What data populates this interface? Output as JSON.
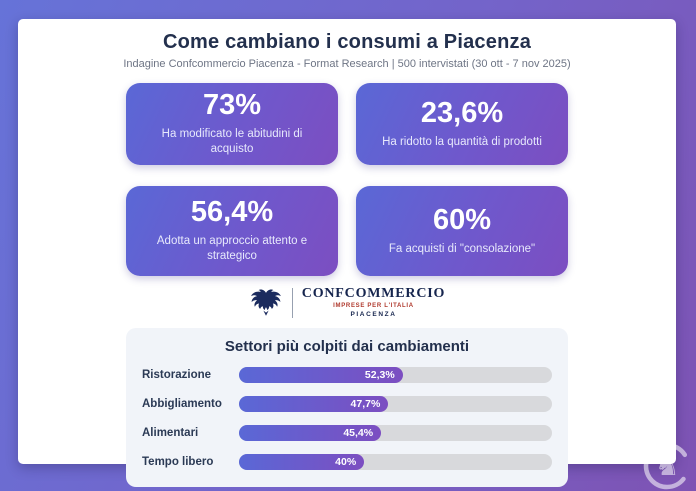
{
  "header": {
    "title": "Come cambiano i consumi a Piacenza",
    "subtitle": "Indagine Confcommercio Piacenza - Format Research | 500 intervistati (30 ott - 7 nov 2025)"
  },
  "stats": [
    {
      "value": "73%",
      "label": "Ha modificato le abitudini di acquisto"
    },
    {
      "value": "23,6%",
      "label": "Ha ridotto la quantità di prodotti"
    },
    {
      "value": "56,4%",
      "label": "Adotta un approccio attento e strategico"
    },
    {
      "value": "60%",
      "label": "Fa acquisti di \"consolazione\""
    }
  ],
  "logo": {
    "name": "CONFCOMMERCIO",
    "tagline": "IMPRESE PER L'ITALIA",
    "city": "PIACENZA"
  },
  "chart_data": {
    "type": "bar",
    "title": "Settori più colpiti dai cambiamenti",
    "categories": [
      "Ristorazione",
      "Abbigliamento",
      "Alimentari",
      "Tempo libero"
    ],
    "values": [
      52.3,
      47.7,
      45.4,
      40
    ],
    "value_labels": [
      "52,3%",
      "47,7%",
      "45,4%",
      "40%"
    ],
    "xlabel": "",
    "ylabel": "",
    "xlim": [
      0,
      100
    ],
    "orientation": "horizontal",
    "grid": false,
    "legend": false
  },
  "watermark": {
    "glyph": "♞"
  },
  "colors": {
    "accent_blue": "#5a68d6",
    "accent_purple": "#7c4ec1",
    "frame_gradient_start": "#6673d8",
    "frame_gradient_end": "#7e53b3",
    "navy_text": "#23304d",
    "logo_red": "#b03a2e",
    "section_bg": "#f1f4f9",
    "track_gray": "#d8d9dc"
  }
}
